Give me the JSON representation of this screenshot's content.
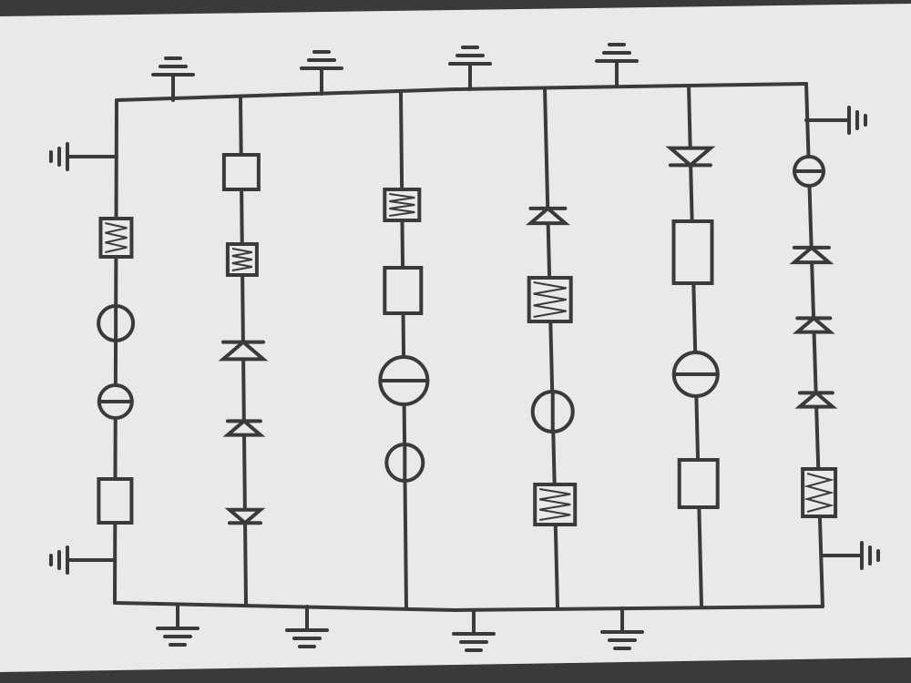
{
  "diagram": {
    "kind": "hand-drawn circuit schematic",
    "branches": [
      {
        "id": "branch-1",
        "components": [
          "inductor",
          "source-vertical-bar",
          "source-horizontal-bar",
          "resistor"
        ]
      },
      {
        "id": "branch-2",
        "components": [
          "resistor",
          "inductor",
          "diode",
          "diode",
          "diode"
        ]
      },
      {
        "id": "branch-3",
        "components": [
          "inductor",
          "resistor",
          "source-horizontal-bar",
          "source-vertical-bar"
        ]
      },
      {
        "id": "branch-4",
        "components": [
          "diode",
          "inductor",
          "source-vertical-bar",
          "inductor"
        ]
      },
      {
        "id": "branch-5",
        "components": [
          "diode",
          "resistor",
          "source-horizontal-bar",
          "resistor"
        ]
      },
      {
        "id": "branch-6",
        "components": [
          "source-horizontal-bar",
          "diode",
          "diode",
          "diode",
          "inductor"
        ]
      }
    ],
    "ground_symbols": {
      "top_rail": 4,
      "bottom_rail": 4,
      "left_side": 2,
      "right_side": 2
    },
    "colors": {
      "paper": "#e9e9e9",
      "ink": "#3a3a3a",
      "background": "#3a3a3a"
    }
  }
}
